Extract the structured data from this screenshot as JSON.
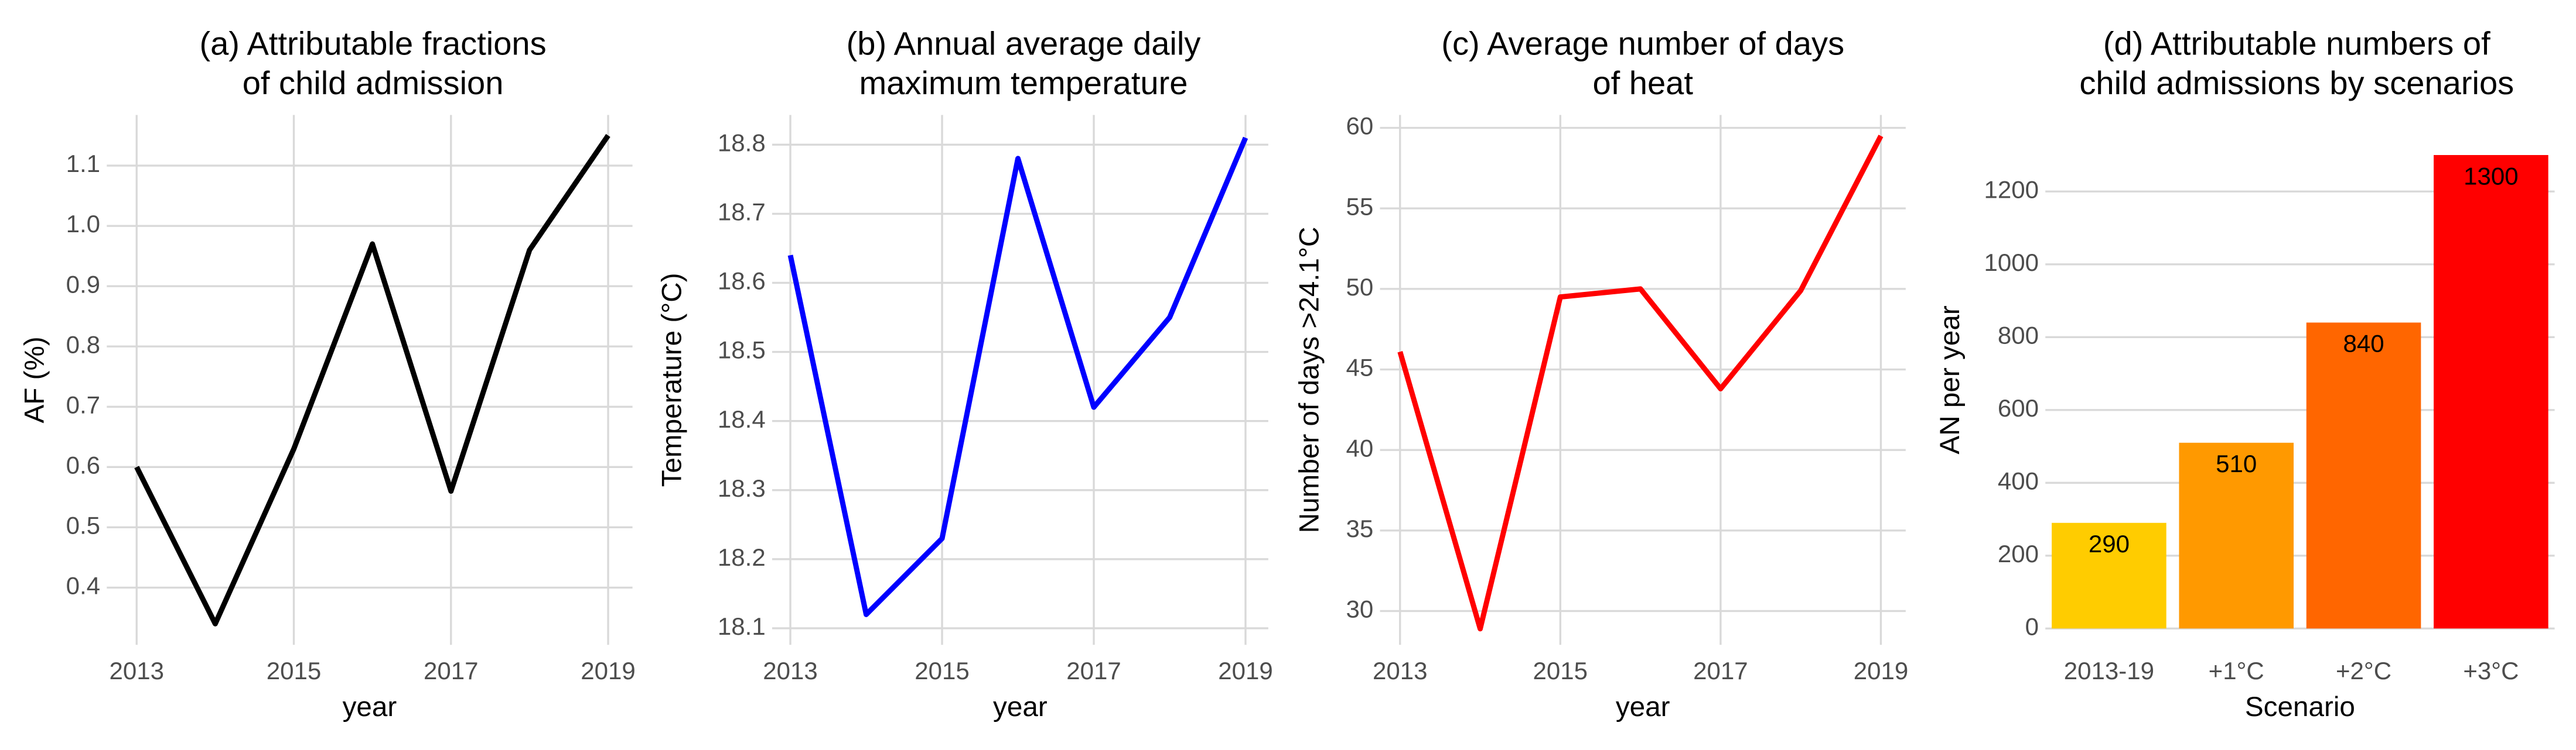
{
  "chart_data": [
    {
      "type": "line",
      "title": [
        "(a) Attributable fractions",
        "of child admission"
      ],
      "xlabel": "year",
      "ylabel": "AF (%)",
      "x": [
        2013,
        2014,
        2015,
        2016,
        2017,
        2018,
        2019
      ],
      "values": [
        0.6,
        0.34,
        0.63,
        0.97,
        0.56,
        0.96,
        1.15
      ],
      "color": "#000000",
      "xlim": [
        2012.62,
        2019.31
      ],
      "xticks": [
        2013,
        2015,
        2017,
        2019
      ],
      "ylim": [
        0.305,
        1.184
      ],
      "yticks": [
        0.4,
        0.5,
        0.6,
        0.7,
        0.8,
        0.9,
        {
          "value": 1.0,
          "label": "1.0"
        },
        1.1
      ],
      "grid": true
    },
    {
      "type": "line",
      "title": [
        "(b) Annual average daily",
        "maximum temperature"
      ],
      "xlabel": "year",
      "ylabel": "Temperature (°C)",
      "x": [
        2013,
        2014,
        2015,
        2016,
        2017,
        2018,
        2019
      ],
      "values": [
        18.64,
        18.12,
        18.23,
        18.78,
        18.42,
        18.55,
        18.81
      ],
      "color": "#0000ff",
      "xlim": [
        2012.76,
        2019.3
      ],
      "xticks": [
        2013,
        2015,
        2017,
        2019
      ],
      "ylim": [
        18.076,
        18.843
      ],
      "yticks": [
        18.1,
        18.2,
        18.3,
        18.4,
        18.5,
        18.6,
        18.7,
        18.8
      ],
      "grid": true
    },
    {
      "type": "line",
      "title": [
        "(c) Average number of days",
        "of heat"
      ],
      "xlabel": "year",
      "ylabel": "Number of days >24.1°C",
      "x": [
        2013,
        2014,
        2015,
        2016,
        2017,
        2018,
        2019
      ],
      "values": [
        46.1,
        28.9,
        49.5,
        50.0,
        43.8,
        49.9,
        59.5
      ],
      "color": "#ff0000",
      "xlim": [
        2012.75,
        2019.31
      ],
      "xticks": [
        2013,
        2015,
        2017,
        2019
      ],
      "ylim": [
        27.9,
        60.8
      ],
      "yticks": [
        30,
        35,
        40,
        45,
        50,
        55,
        60
      ],
      "grid": true
    },
    {
      "type": "bar",
      "title": [
        "(d) Attributable numbers of",
        "child admissions by scenarios"
      ],
      "xlabel": "Scenario",
      "ylabel": "AN per year",
      "categories": [
        "2013-19",
        "+1°C",
        "+2°C",
        "+3°C"
      ],
      "values": [
        290,
        510,
        840,
        1300
      ],
      "colors": [
        "#ffcc00",
        "#ff9900",
        "#ff6600",
        "#ff0000"
      ],
      "ylim": [
        -45,
        1410
      ],
      "yticks": [
        0,
        200,
        400,
        600,
        800,
        1000,
        1200
      ],
      "grid": true
    }
  ]
}
